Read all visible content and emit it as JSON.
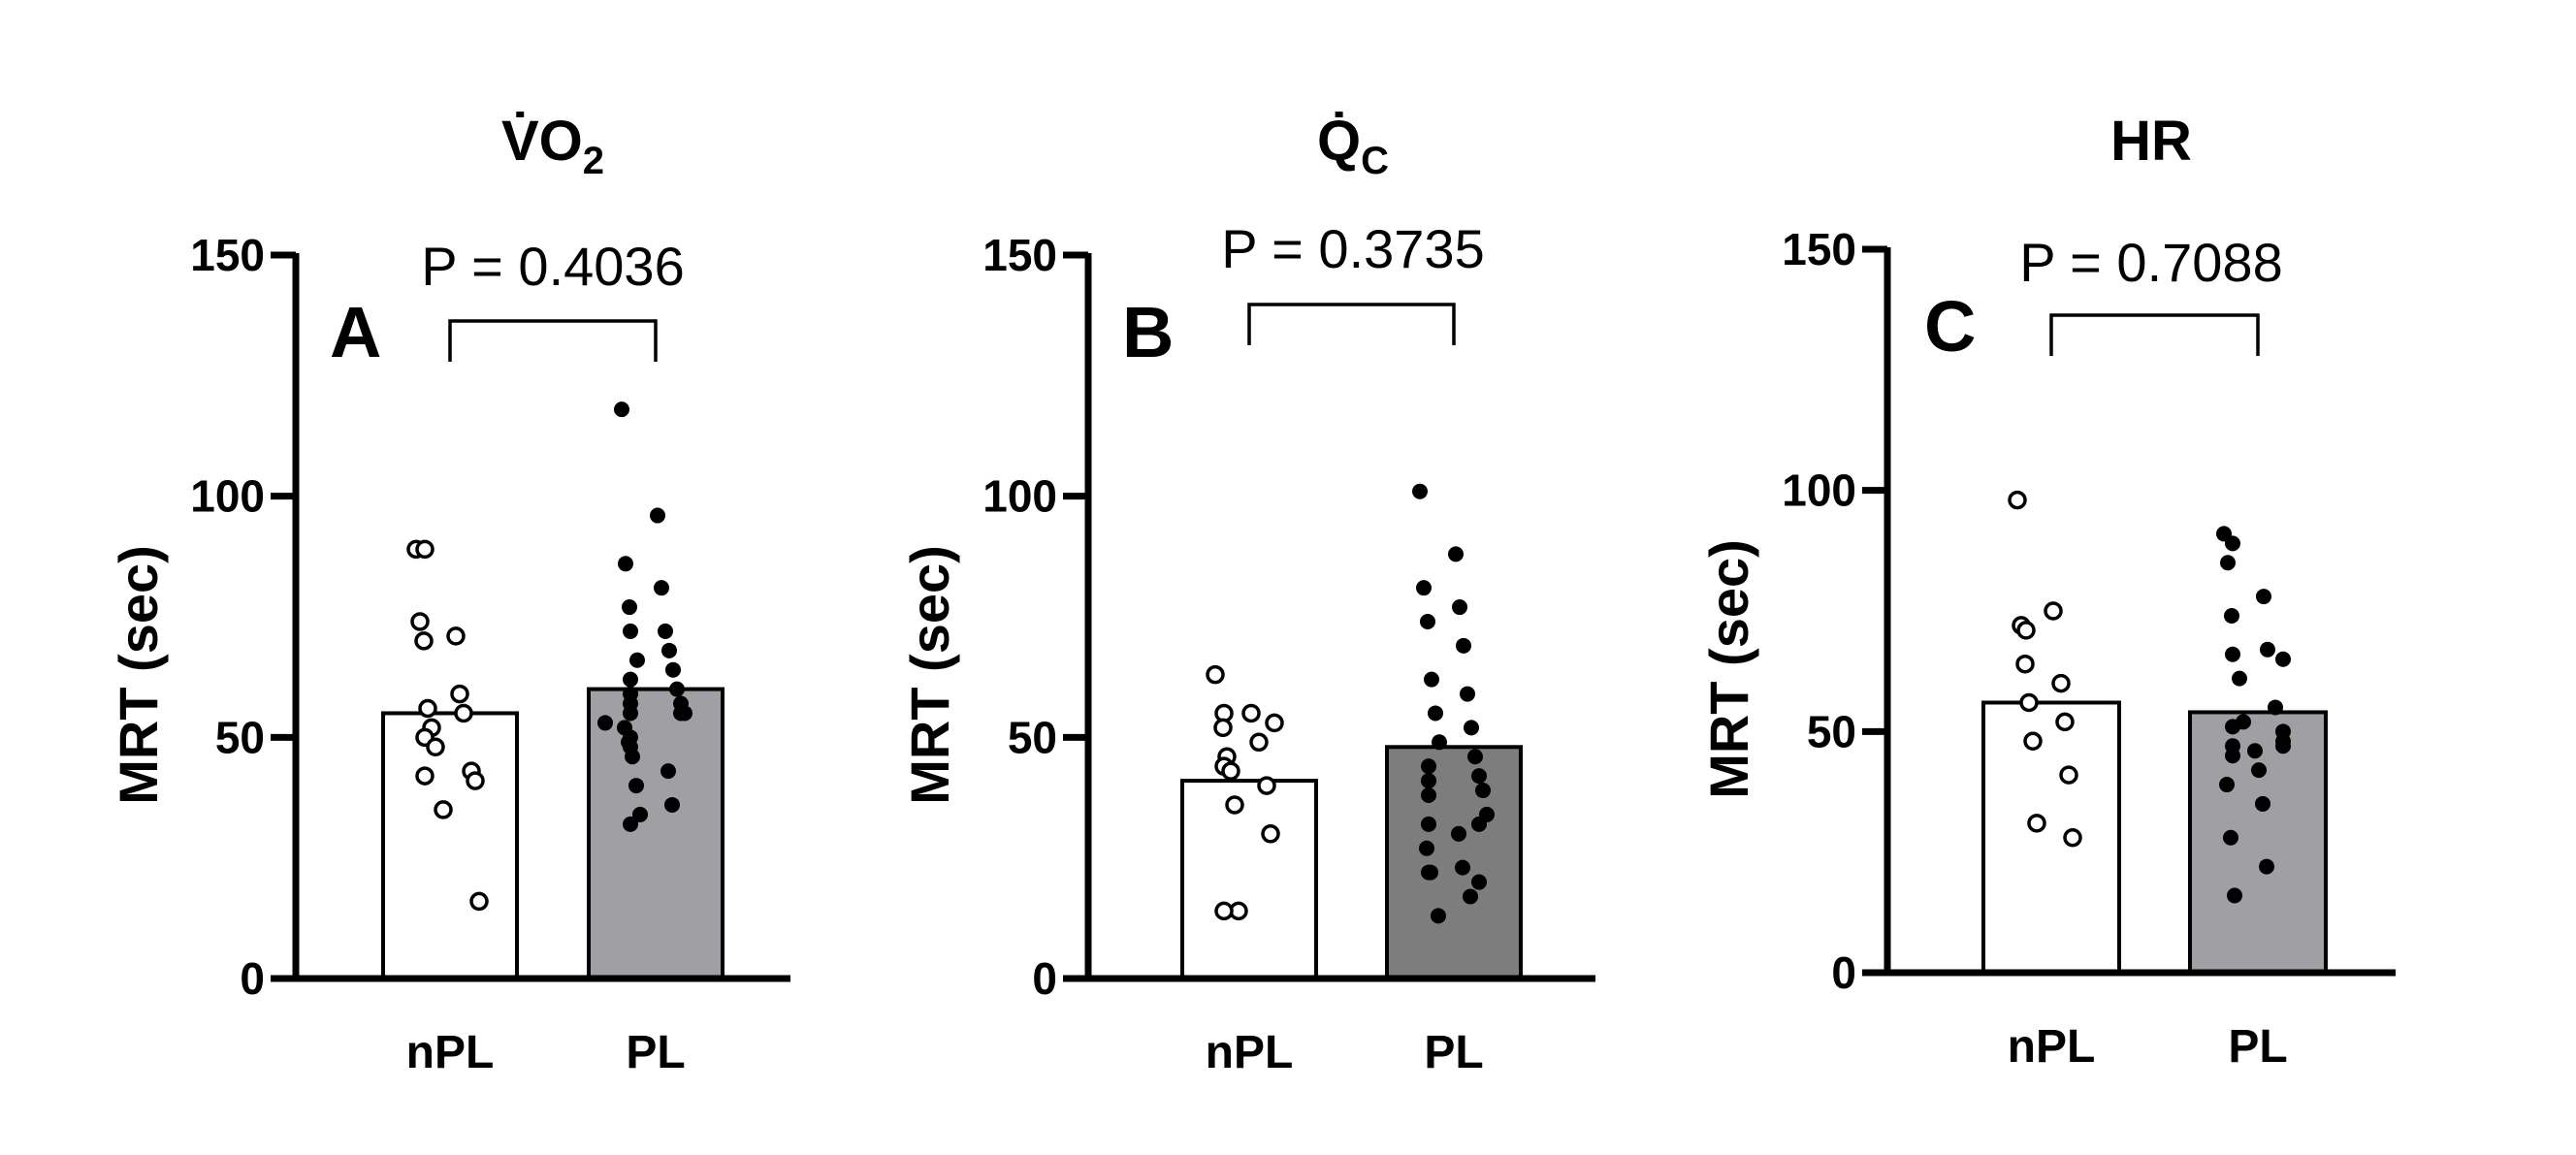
{
  "figure": {
    "background": "#ffffff"
  },
  "chart_data": [
    {
      "type": "bar",
      "panel": "A",
      "title": "V̇O",
      "title_subscript": "2",
      "ylabel": "MRT  (sec)",
      "xlabel": "",
      "ylim": [
        0,
        150
      ],
      "yticks": [
        0,
        50,
        100,
        150
      ],
      "grid": false,
      "categories": [
        "nPL",
        "PL"
      ],
      "values": [
        55,
        60
      ],
      "bar_colors": [
        "#ffffff",
        "#a0a0a4"
      ],
      "points": [
        [
          89,
          89,
          74,
          71,
          70,
          59,
          56,
          55,
          52,
          50,
          48,
          43,
          42,
          41,
          35,
          16
        ],
        [
          118,
          96,
          86,
          81,
          77,
          72,
          72,
          68,
          66,
          64,
          62,
          60,
          59,
          57,
          57,
          55,
          55,
          55,
          53,
          52,
          50,
          49,
          48,
          46,
          43,
          40,
          36,
          34,
          32
        ]
      ],
      "point_styles": [
        "open",
        "filled"
      ],
      "comparison": {
        "label": "P = 0.4036",
        "between": [
          "nPL",
          "PL"
        ]
      }
    },
    {
      "type": "bar",
      "panel": "B",
      "title": "Q̇",
      "title_subscript": "C",
      "ylabel": "MRT  (sec)",
      "xlabel": "",
      "ylim": [
        0,
        150
      ],
      "yticks": [
        0,
        50,
        100,
        150
      ],
      "grid": false,
      "categories": [
        "nPL",
        "PL"
      ],
      "values": [
        41,
        48
      ],
      "bar_colors": [
        "#ffffff",
        "#7d7d7d"
      ],
      "points": [
        [
          63,
          55,
          55,
          53,
          52,
          49,
          46,
          44,
          43,
          40,
          36,
          30,
          14,
          14
        ],
        [
          101,
          88,
          81,
          77,
          74,
          69,
          62,
          59,
          55,
          52,
          49,
          46,
          44,
          42,
          41,
          39,
          38,
          34,
          32,
          32,
          30,
          27,
          23,
          22,
          22,
          20,
          17,
          13
        ]
      ],
      "point_styles": [
        "open",
        "filled"
      ],
      "comparison": {
        "label": "P = 0.3735",
        "between": [
          "nPL",
          "PL"
        ]
      }
    },
    {
      "type": "bar",
      "panel": "C",
      "title": "HR",
      "title_subscript": "",
      "ylabel": "MRT  (sec)",
      "xlabel": "",
      "ylim": [
        0,
        150
      ],
      "yticks": [
        0,
        50,
        100,
        150
      ],
      "grid": false,
      "categories": [
        "nPL",
        "PL"
      ],
      "values": [
        56,
        54
      ],
      "bar_colors": [
        "#ffffff",
        "#a0a0a4"
      ],
      "points": [
        [
          98,
          75,
          72,
          71,
          64,
          60,
          56,
          52,
          48,
          41,
          31,
          28
        ],
        [
          91,
          89,
          85,
          78,
          74,
          67,
          66,
          65,
          61,
          55,
          52,
          51,
          50,
          48,
          47,
          47,
          46,
          45,
          42,
          39,
          35,
          28,
          22,
          16
        ]
      ],
      "point_styles": [
        "open",
        "filled"
      ],
      "comparison": {
        "label": "P = 0.7088",
        "between": [
          "nPL",
          "PL"
        ]
      }
    }
  ]
}
